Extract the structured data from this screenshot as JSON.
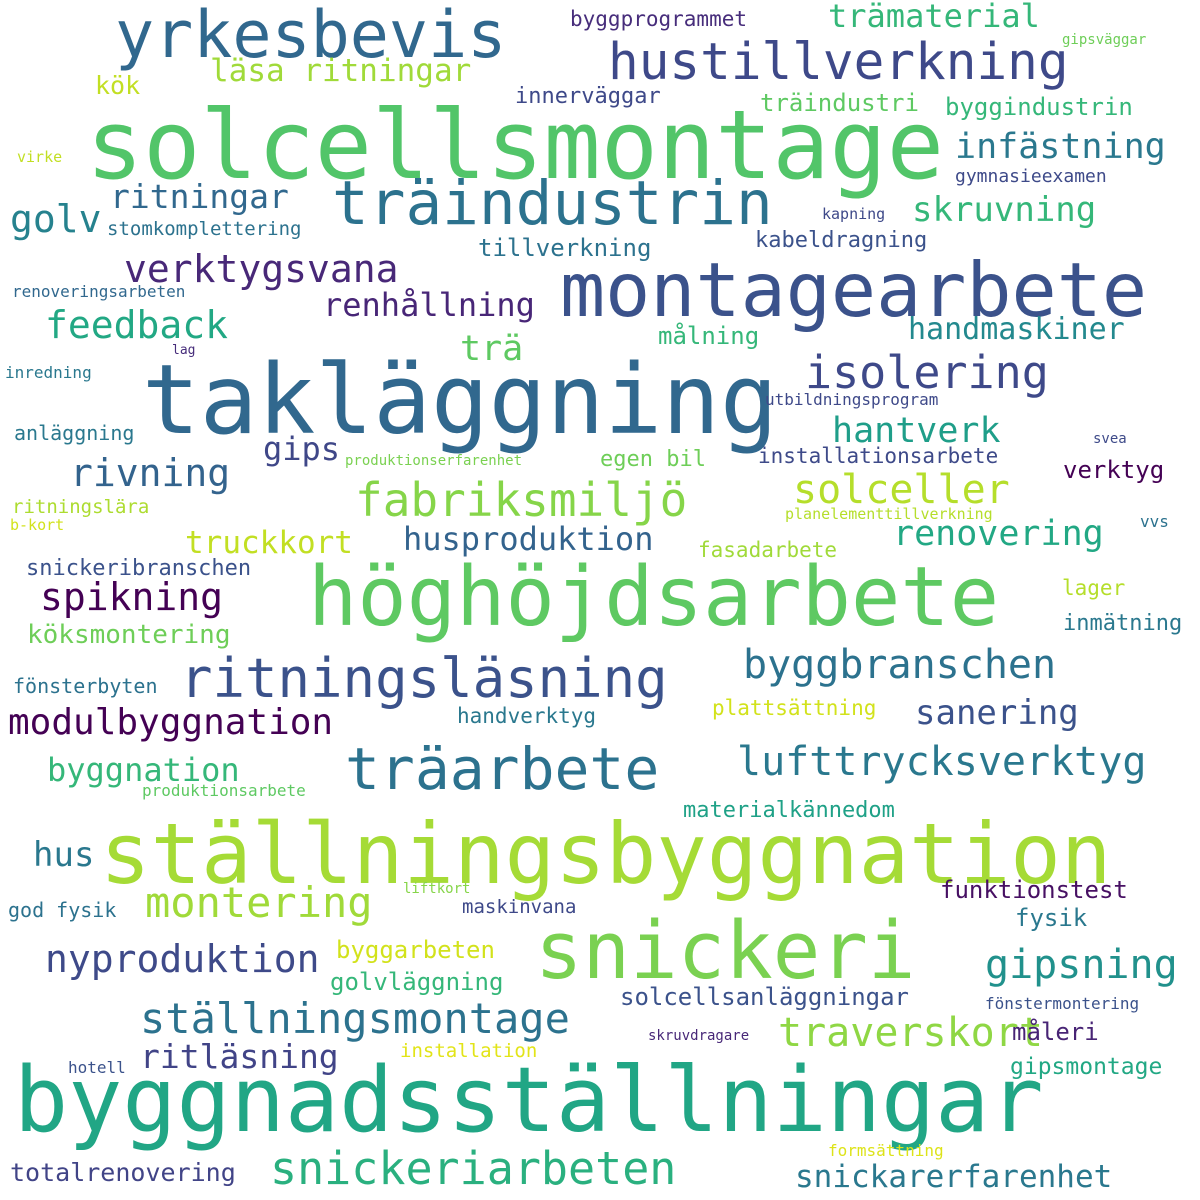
{
  "word_cloud": {
    "words": [
      {
        "text": "solcellsmontage",
        "color": "#52c569"
      },
      {
        "text": "takläggning",
        "color": "#31688e"
      },
      {
        "text": "höghöjdsarbete",
        "color": "#5ec962"
      },
      {
        "text": "ställningsbyggnation",
        "color": "#a5db36"
      },
      {
        "text": "byggnadsställningar",
        "color": "#21a685"
      },
      {
        "text": "montagearbete",
        "color": "#3b528b"
      },
      {
        "text": "snickeri",
        "color": "#7ad151"
      },
      {
        "text": "yrkesbevis",
        "color": "#31688e"
      },
      {
        "text": "träindustrin",
        "color": "#2c728e"
      },
      {
        "text": "hustillverkning",
        "color": "#3e4989"
      },
      {
        "text": "ritningsläsning",
        "color": "#3b528b"
      },
      {
        "text": "träarbete",
        "color": "#2c728e"
      },
      {
        "text": "fabriksmiljö",
        "color": "#86d549"
      },
      {
        "text": "snickeriarbeten",
        "color": "#2ab07f"
      },
      {
        "text": "ställningsmontage",
        "color": "#2c728e"
      },
      {
        "text": "isolering",
        "color": "#3e4989"
      },
      {
        "text": "lufttrycksverktyg",
        "color": "#2a788e"
      },
      {
        "text": "byggbranschen",
        "color": "#2c728e"
      },
      {
        "text": "verktygsvana",
        "color": "#482878"
      },
      {
        "text": "montering",
        "color": "#a0da39"
      },
      {
        "text": "modulbyggnation",
        "color": "#440154"
      },
      {
        "text": "traverskort",
        "color": "#8fd744"
      },
      {
        "text": "nyproduktion",
        "color": "#3e4a89"
      },
      {
        "text": "gipsning",
        "color": "#21918c"
      },
      {
        "text": "solceller",
        "color": "#b5de2b"
      },
      {
        "text": "rivning",
        "color": "#33638d"
      },
      {
        "text": "feedback",
        "color": "#22a884"
      },
      {
        "text": "läsa ritningar",
        "color": "#a0da39"
      },
      {
        "text": "spikning",
        "color": "#440154"
      },
      {
        "text": "truckkort",
        "color": "#c2df23"
      },
      {
        "text": "renovering",
        "color": "#22a884"
      },
      {
        "text": "husproduktion",
        "color": "#33638d"
      },
      {
        "text": "hantverk",
        "color": "#1f9e89"
      },
      {
        "text": "infästning",
        "color": "#2a788e"
      },
      {
        "text": "skruvning",
        "color": "#35b779"
      },
      {
        "text": "ritningar",
        "color": "#31688e"
      },
      {
        "text": "sanering",
        "color": "#3b528b"
      },
      {
        "text": "renhållning",
        "color": "#482677"
      },
      {
        "text": "handmaskiner",
        "color": "#23898e"
      },
      {
        "text": "trämaterial",
        "color": "#35b779"
      },
      {
        "text": "ritläsning",
        "color": "#414487"
      },
      {
        "text": "snickarerfarenhet",
        "color": "#2a788e"
      },
      {
        "text": "byggnation",
        "color": "#35b779"
      },
      {
        "text": "golv",
        "color": "#26828e"
      },
      {
        "text": "trä",
        "color": "#5ec962"
      },
      {
        "text": "hus",
        "color": "#2a788e"
      },
      {
        "text": "gips",
        "color": "#3f4788"
      },
      {
        "text": "totalrenovering",
        "color": "#414487"
      },
      {
        "text": "solcellsanläggningar",
        "color": "#3b528b"
      },
      {
        "text": "golvläggning",
        "color": "#35b779"
      },
      {
        "text": "funktionstest",
        "color": "#471063"
      },
      {
        "text": "gipsmontage",
        "color": "#22a884"
      },
      {
        "text": "köksmontering",
        "color": "#6ece58"
      },
      {
        "text": "byggarbeten",
        "color": "#d2e21b"
      },
      {
        "text": "verktyg",
        "color": "#440154"
      },
      {
        "text": "materialkännedom",
        "color": "#1fa187"
      },
      {
        "text": "snickeribranschen",
        "color": "#3b528b"
      },
      {
        "text": "fysik",
        "color": "#2a788e"
      },
      {
        "text": "måleri",
        "color": "#482475"
      },
      {
        "text": "installationsarbete",
        "color": "#3e4a89"
      },
      {
        "text": "tillverkning",
        "color": "#2c728e"
      },
      {
        "text": "kabeldragning",
        "color": "#3b528b"
      },
      {
        "text": "byggindustrin",
        "color": "#35b779"
      },
      {
        "text": "träindustri",
        "color": "#5ec962"
      },
      {
        "text": "handverktyg",
        "color": "#2a788e"
      },
      {
        "text": "innerväggar",
        "color": "#3e4989"
      },
      {
        "text": "egen bil",
        "color": "#6ece58"
      },
      {
        "text": "målning",
        "color": "#35b779"
      },
      {
        "text": "byggprogrammet",
        "color": "#472d7b"
      },
      {
        "text": "stomkomplettering",
        "color": "#2c728e"
      },
      {
        "text": "fasadarbete",
        "color": "#a0da39"
      },
      {
        "text": "plattsättning",
        "color": "#d2e21b"
      },
      {
        "text": "god fysik",
        "color": "#2c728e"
      },
      {
        "text": "maskinvana",
        "color": "#3e4989"
      },
      {
        "text": "inmätning",
        "color": "#2a788e"
      },
      {
        "text": "fönsterbyten",
        "color": "#2c728e"
      },
      {
        "text": "anläggning",
        "color": "#2a788e"
      },
      {
        "text": "gymnasieexamen",
        "color": "#3e4a89"
      },
      {
        "text": "kök",
        "color": "#c2df23"
      },
      {
        "text": "installation",
        "color": "#e2e418"
      },
      {
        "text": "lager",
        "color": "#b5de2b"
      },
      {
        "text": "ritningslära",
        "color": "#addc30"
      },
      {
        "text": "produktionsarbete",
        "color": "#5ec962"
      },
      {
        "text": "utbildningsprogram",
        "color": "#3e4989"
      },
      {
        "text": "produktionserfarenhet",
        "color": "#7ad151"
      },
      {
        "text": "planelementtillverkning",
        "color": "#b5de2b"
      },
      {
        "text": "fönstermontering",
        "color": "#3b528b"
      },
      {
        "text": "renoveringsarbeten",
        "color": "#31688e"
      },
      {
        "text": "inredning",
        "color": "#2a788e"
      },
      {
        "text": "formsättning",
        "color": "#dde318"
      },
      {
        "text": "skruvdragare",
        "color": "#482878"
      },
      {
        "text": "kapning",
        "color": "#3e4989"
      },
      {
        "text": "virke",
        "color": "#c2df23"
      },
      {
        "text": "gipsväggar",
        "color": "#6ece58"
      },
      {
        "text": "liftkort",
        "color": "#86d549"
      },
      {
        "text": "hotell",
        "color": "#3b528b"
      },
      {
        "text": "b-kort",
        "color": "#d2e21b"
      },
      {
        "text": "vvs",
        "color": "#2c728e"
      },
      {
        "text": "svea",
        "color": "#3e4a89"
      },
      {
        "text": "lag",
        "color": "#472d7b"
      }
    ]
  }
}
